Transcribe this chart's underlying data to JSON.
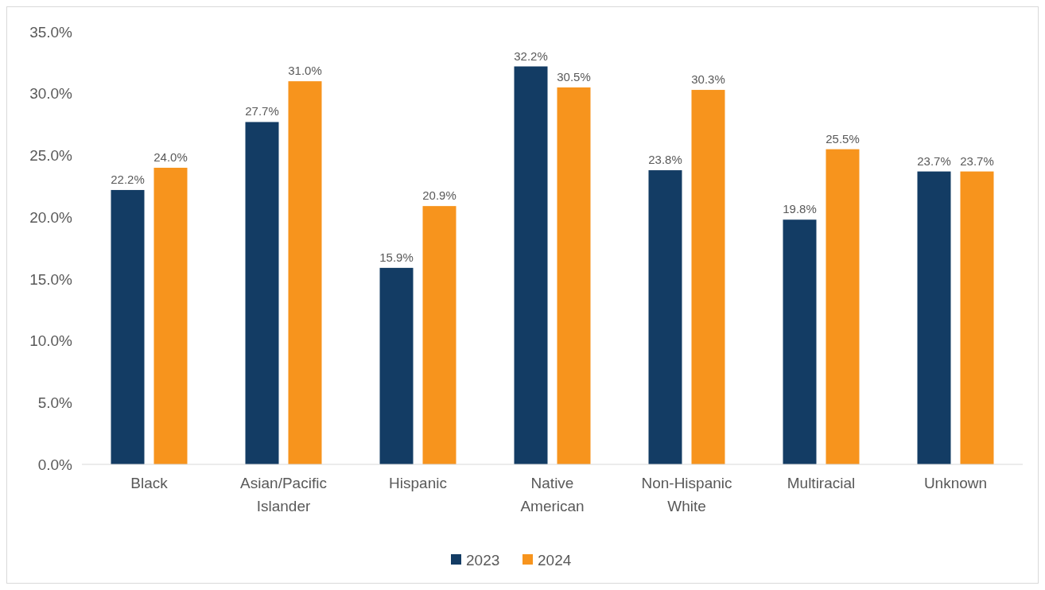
{
  "chart_data": {
    "type": "bar",
    "categories": [
      "Black",
      "Asian/Pacific Islander",
      "Hispanic",
      "Native American",
      "Non-Hispanic White",
      "Multiracial",
      "Unknown"
    ],
    "series": [
      {
        "name": "2023",
        "color": "#133c64",
        "values": [
          22.2,
          27.7,
          15.9,
          32.2,
          23.8,
          19.8,
          23.7
        ],
        "value_labels": [
          "22.2%",
          "27.7%",
          "15.9%",
          "32.2%",
          "23.8%",
          "19.8%",
          "23.7%"
        ]
      },
      {
        "name": "2024",
        "color": "#f7941d",
        "values": [
          24.0,
          31.0,
          20.9,
          30.5,
          30.3,
          25.5,
          23.7
        ],
        "value_labels": [
          "24.0%",
          "31.0%",
          "20.9%",
          "30.5%",
          "30.3%",
          "25.5%",
          "23.7%"
        ]
      }
    ],
    "ylim": [
      0,
      35
    ],
    "yticks": [
      {
        "value": 0,
        "label": "0.0%"
      },
      {
        "value": 5,
        "label": "5.0%"
      },
      {
        "value": 10,
        "label": "10.0%"
      },
      {
        "value": 15,
        "label": "15.0%"
      },
      {
        "value": 20,
        "label": "20.0%"
      },
      {
        "value": 25,
        "label": "25.0%"
      },
      {
        "value": 30,
        "label": "30.0%"
      },
      {
        "value": 35,
        "label": "35.0%"
      }
    ],
    "grid": false,
    "legend": "bottom"
  }
}
